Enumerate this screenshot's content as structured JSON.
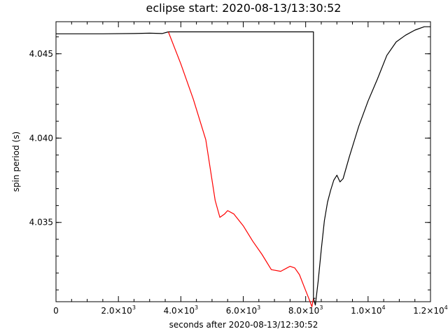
{
  "chart_data": {
    "type": "line",
    "title": "eclipse start: 2020-08-13/13:30:52",
    "xlabel": "seconds after 2020-08-13/12:30:52",
    "ylabel": "spin period (s)",
    "xlim": [
      0,
      12000
    ],
    "ylim": [
      4.0303,
      4.0469
    ],
    "grid": false,
    "x_ticks": [
      {
        "value": 0,
        "mant": "0",
        "exp": ""
      },
      {
        "value": 2000,
        "mant": "2.0×10",
        "exp": "3"
      },
      {
        "value": 4000,
        "mant": "4.0×10",
        "exp": "3"
      },
      {
        "value": 6000,
        "mant": "6.0×10",
        "exp": "3"
      },
      {
        "value": 8000,
        "mant": "8.0×10",
        "exp": "3"
      },
      {
        "value": 10000,
        "mant": "1.0×10",
        "exp": "4"
      },
      {
        "value": 12000,
        "mant": "1.2×10",
        "exp": "4"
      }
    ],
    "y_ticks": [
      {
        "value": 4.035,
        "label": "4.035"
      },
      {
        "value": 4.04,
        "label": "4.040"
      },
      {
        "value": 4.045,
        "label": "4.045"
      }
    ],
    "series": [
      {
        "color": "#000000",
        "x": [
          0,
          1500,
          2500,
          3000,
          3400,
          3600,
          3600,
          8250,
          8250,
          8310
        ],
        "y": [
          4.04618,
          4.04618,
          4.0462,
          4.04622,
          4.0462,
          4.0463,
          4.0463,
          4.0463,
          4.0305,
          4.0305
        ]
      },
      {
        "color": "#ff0000",
        "x": [
          3600,
          4000,
          4400,
          4800,
          5100,
          5250,
          5400,
          5500,
          5700,
          6000,
          6300,
          6600,
          6900,
          7200,
          7400,
          7500,
          7650,
          7800,
          7950,
          8100,
          8200,
          8250
        ],
        "y": [
          4.0463,
          4.0444,
          4.0423,
          4.0399,
          4.0363,
          4.0353,
          4.0355,
          4.0357,
          4.0355,
          4.0348,
          4.0339,
          4.0331,
          4.0322,
          4.0321,
          4.0323,
          4.0324,
          4.0323,
          4.0319,
          4.0312,
          4.0305,
          4.03,
          4.0305
        ]
      },
      {
        "color": "#000000",
        "x": [
          8250,
          8310,
          8400,
          8500,
          8600,
          8700,
          8800,
          8900,
          9000,
          9100,
          9200,
          9400,
          9700,
          10000,
          10300,
          10600,
          10900,
          11200,
          11500,
          11800,
          12000
        ],
        "y": [
          4.0305,
          4.0301,
          4.0315,
          4.0334,
          4.0351,
          4.0362,
          4.0369,
          4.0375,
          4.0378,
          4.0374,
          4.0376,
          4.0389,
          4.0407,
          4.0422,
          4.0435,
          4.0449,
          4.0457,
          4.0461,
          4.0464,
          4.0466,
          4.0466
        ]
      }
    ]
  }
}
